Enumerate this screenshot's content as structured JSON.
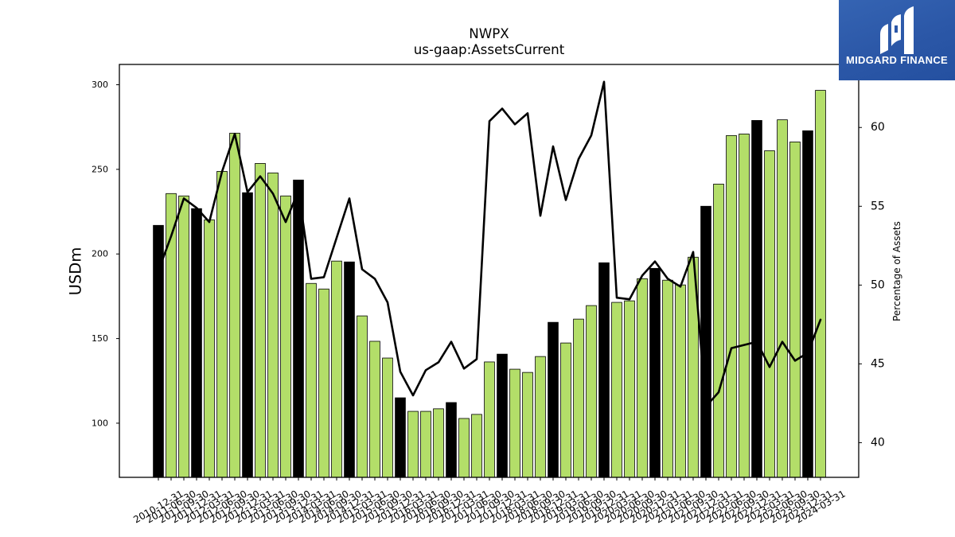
{
  "logo": {
    "text": "MIDGARD FINANCE",
    "icon": "midgard-logo-mark",
    "background": "#2b57a7"
  },
  "chart_data": {
    "type": "bar",
    "title": "NWPX",
    "subtitle": "us-gaap:AssetsCurrent",
    "ylabel": "USDm",
    "y2label": "Percentage of Assets",
    "ylim": [
      68,
      312
    ],
    "y2lim": [
      37.8,
      64.0
    ],
    "yticks": [
      100,
      150,
      200,
      250,
      300
    ],
    "y2ticks": [
      40,
      45,
      50,
      55,
      60
    ],
    "grid": false,
    "colors": {
      "bar": "#b3de69",
      "year_end_bar": "#000000",
      "bar_edge": "#000000",
      "line": "#000000"
    },
    "categories": [
      "2010-12-31",
      "2011-06-30",
      "2011-09-30",
      "2011-12-31",
      "2012-03-31",
      "2012-06-30",
      "2012-09-30",
      "2012-12-31",
      "2013-03-31",
      "2013-06-30",
      "2013-09-30",
      "2013-12-31",
      "2014-03-31",
      "2014-06-30",
      "2014-09-30",
      "2014-12-31",
      "2015-03-31",
      "2015-06-30",
      "2015-09-30",
      "2015-12-31",
      "2016-03-31",
      "2016-06-30",
      "2016-09-30",
      "2016-12-31",
      "2017-03-31",
      "2017-06-30",
      "2017-09-30",
      "2017-12-31",
      "2018-03-31",
      "2018-06-30",
      "2018-09-30",
      "2018-12-31",
      "2019-03-31",
      "2019-06-30",
      "2019-09-30",
      "2019-12-31",
      "2020-03-31",
      "2020-06-30",
      "2020-09-30",
      "2020-12-31",
      "2021-03-31",
      "2021-06-30",
      "2021-09-30",
      "2021-12-31",
      "2022-03-31",
      "2022-06-30",
      "2022-09-30",
      "2022-12-31",
      "2023-03-31",
      "2023-06-30",
      "2023-09-30",
      "2023-12-31",
      "2024-03-31"
    ],
    "series": [
      {
        "type": "bar",
        "y_axis": "left",
        "values": [
          216.9,
          235.7,
          234.3,
          226.8,
          220.2,
          248.8,
          271.4,
          236.2,
          253.5,
          247.9,
          234.3,
          243.7,
          182.6,
          179.3,
          195.8,
          195.3,
          163.4,
          148.4,
          138.5,
          115.0,
          107.0,
          107.0,
          108.5,
          112.2,
          102.8,
          105.2,
          136.2,
          140.8,
          131.9,
          130.0,
          139.4,
          159.6,
          147.4,
          161.5,
          169.5,
          194.8,
          171.4,
          172.3,
          185.4,
          191.5,
          184.5,
          181.7,
          198.1,
          228.2,
          241.3,
          270.0,
          270.9,
          278.9,
          261.0,
          279.3,
          266.2,
          272.8,
          296.7
        ]
      },
      {
        "type": "line",
        "y_axis": "right",
        "values": [
          50.9,
          53.1,
          55.5,
          54.9,
          54.0,
          57.2,
          59.6,
          55.9,
          56.9,
          55.8,
          54.0,
          56.0,
          50.4,
          50.5,
          53.0,
          55.5,
          51.0,
          50.4,
          48.9,
          44.5,
          43.0,
          44.6,
          45.1,
          46.4,
          44.7,
          45.3,
          60.4,
          61.2,
          60.2,
          60.9,
          54.4,
          58.8,
          55.4,
          58.0,
          59.5,
          62.9,
          49.2,
          49.1,
          50.6,
          51.5,
          50.4,
          49.9,
          52.1,
          42.3,
          43.2,
          46.0,
          46.2,
          46.4,
          44.8,
          46.4,
          45.2,
          45.7,
          47.8
        ]
      }
    ]
  }
}
